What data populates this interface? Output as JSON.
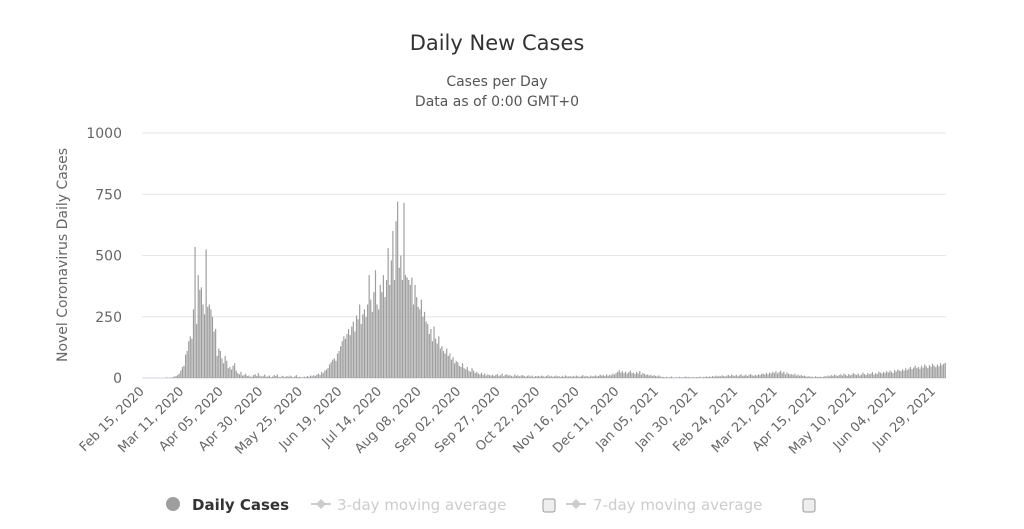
{
  "chart_data": {
    "type": "bar",
    "title": "Daily New Cases",
    "subtitle": [
      "Cases per Day",
      "Data as of 0:00 GMT+0"
    ],
    "ylabel": "Novel Coronavirus Daily Cases",
    "xlabel": "",
    "ylim": [
      0,
      1000
    ],
    "yticks": [
      "0",
      "250",
      "500",
      "750",
      "1000"
    ],
    "ytick_values": [
      0,
      250,
      500,
      750,
      1000
    ],
    "grid": true,
    "start_date": "2020-02-15",
    "tick_interval_days": 25,
    "xticks": [
      "Feb 15, 2020",
      "Mar 11, 2020",
      "Apr 05, 2020",
      "Apr 30, 2020",
      "May 25, 2020",
      "Jun 19, 2020",
      "Jul 14, 2020",
      "Aug 08, 2020",
      "Sep 02, 2020",
      "Sep 27, 2020",
      "Oct 22, 2020",
      "Nov 16, 2020",
      "Dec 11, 2020",
      "Jan 05, 2021",
      "Jan 30, 2021",
      "Feb 24, 2021",
      "Mar 21, 2021",
      "Apr 15, 2021",
      "May 10, 2021",
      "Jun 04, 2021",
      "Jun 29, 2021"
    ],
    "bar_color": "#9e9e9e",
    "legend_placement": "bottom",
    "legend": [
      {
        "label": "Daily Cases",
        "active": true,
        "color": "#9e9e9e"
      },
      {
        "label": "3-day moving average",
        "active": false,
        "color": "#cccccc"
      },
      {
        "label": "7-day moving average",
        "active": false,
        "color": "#cccccc"
      }
    ],
    "series": [
      {
        "name": "Daily Cases",
        "values": [
          0,
          0,
          0,
          0,
          0,
          0,
          0,
          0,
          0,
          0,
          0,
          0,
          0,
          0,
          0,
          3,
          0,
          2,
          1,
          4,
          6,
          8,
          12,
          18,
          30,
          45,
          50,
          95,
          110,
          150,
          170,
          160,
          280,
          535,
          220,
          420,
          360,
          370,
          300,
          260,
          525,
          290,
          300,
          280,
          250,
          190,
          200,
          90,
          120,
          110,
          80,
          60,
          90,
          70,
          40,
          45,
          35,
          50,
          60,
          30,
          20,
          15,
          25,
          10,
          12,
          18,
          8,
          10,
          5,
          6,
          12,
          15,
          8,
          20,
          10,
          6,
          9,
          14,
          5,
          7,
          10,
          4,
          6,
          12,
          8,
          15,
          5,
          3,
          9,
          6,
          4,
          8,
          5,
          10,
          6,
          3,
          7,
          12,
          4,
          5,
          3,
          2,
          6,
          4,
          8,
          5,
          10,
          7,
          12,
          9,
          14,
          18,
          12,
          25,
          20,
          30,
          35,
          40,
          55,
          65,
          75,
          80,
          70,
          100,
          110,
          130,
          150,
          170,
          160,
          180,
          200,
          175,
          210,
          230,
          190,
          255,
          240,
          300,
          220,
          260,
          280,
          250,
          300,
          420,
          320,
          270,
          350,
          440,
          300,
          280,
          380,
          350,
          420,
          330,
          400,
          530,
          380,
          480,
          600,
          400,
          640,
          720,
          450,
          500,
          400,
          715,
          420,
          410,
          400,
          380,
          410,
          300,
          380,
          330,
          290,
          280,
          320,
          250,
          270,
          230,
          220,
          180,
          200,
          150,
          210,
          160,
          140,
          170,
          120,
          130,
          110,
          100,
          120,
          90,
          100,
          75,
          85,
          60,
          70,
          65,
          50,
          45,
          60,
          40,
          35,
          45,
          30,
          25,
          40,
          30,
          20,
          25,
          18,
          15,
          22,
          12,
          18,
          10,
          15,
          12,
          10,
          14,
          8,
          12,
          16,
          9,
          11,
          18,
          7,
          13,
          15,
          10,
          12,
          8,
          6,
          14,
          9,
          11,
          7,
          10,
          12,
          8,
          5,
          9,
          11,
          6,
          10,
          4,
          8,
          7,
          9,
          6,
          10,
          7,
          5,
          8,
          12,
          6,
          9,
          5,
          7,
          10,
          6,
          8,
          4,
          9,
          5,
          11,
          7,
          6,
          8,
          5,
          9,
          6,
          10,
          7,
          4,
          8,
          12,
          6,
          9,
          7,
          5,
          10,
          6,
          8,
          11,
          7,
          9,
          14,
          10,
          12,
          8,
          15,
          9,
          13,
          11,
          18,
          14,
          20,
          25,
          32,
          22,
          28,
          20,
          26,
          18,
          24,
          30,
          20,
          22,
          16,
          25,
          18,
          28,
          14,
          20,
          17,
          12,
          15,
          10,
          13,
          8,
          12,
          9,
          7,
          11,
          6,
          5,
          4,
          3,
          5,
          2,
          4,
          6,
          3,
          1,
          4,
          2,
          5,
          3,
          2,
          4,
          6,
          3,
          5,
          2,
          4,
          3,
          2,
          4,
          3,
          6,
          2,
          5,
          3,
          7,
          4,
          6,
          5,
          8,
          5,
          10,
          6,
          9,
          7,
          11,
          8,
          6,
          10,
          12,
          8,
          14,
          10,
          9,
          13,
          7,
          11,
          15,
          9,
          10,
          14,
          8,
          12,
          16,
          11,
          9,
          13,
          10,
          15,
          12,
          16,
          18,
          14,
          20,
          15,
          22,
          18,
          25,
          20,
          28,
          18,
          24,
          30,
          20,
          26,
          15,
          22,
          18,
          14,
          16,
          12,
          18,
          10,
          14,
          9,
          12,
          8,
          10,
          7,
          5,
          8,
          4,
          6,
          3,
          7,
          5,
          4,
          6,
          3,
          5,
          8,
          6,
          10,
          7,
          12,
          9,
          14,
          11,
          8,
          12,
          15,
          10,
          18,
          13,
          9,
          16,
          11,
          14,
          20,
          15,
          12,
          18,
          10,
          14,
          22,
          16,
          12,
          20,
          15,
          18,
          24,
          14,
          20,
          16,
          26,
          22,
          18,
          25,
          20,
          28,
          22,
          30,
          25,
          20,
          32,
          26,
          35,
          30,
          28,
          35,
          30,
          40,
          32,
          38,
          45,
          36,
          42,
          50,
          40,
          45,
          38,
          50,
          42,
          55,
          48,
          40,
          52,
          46,
          58,
          50,
          44,
          55,
          48,
          60,
          52,
          58,
          62
        ]
      }
    ]
  }
}
